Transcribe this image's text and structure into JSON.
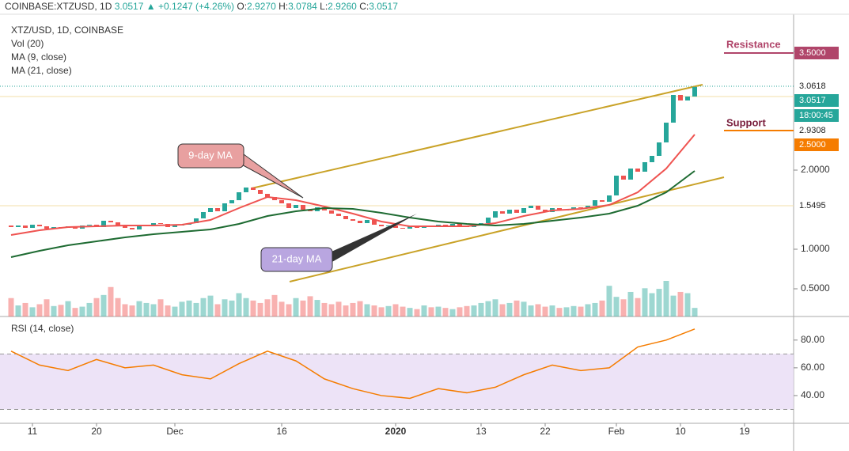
{
  "chart_data": {
    "type": "candlestick",
    "header": {
      "symbol": "COINBASE:XTZUSD, 1D",
      "last": "3.0517",
      "change": "▲ +0.1247 (+4.26%)",
      "ohlc": [
        {
          "label": "O:",
          "value": "2.9270"
        },
        {
          "label": "H:",
          "value": "3.0784"
        },
        {
          "label": "L:",
          "value": "2.9260"
        },
        {
          "label": "C:",
          "value": "3.0517"
        }
      ]
    },
    "title": "XTZ/USD, 1D, COINBASE",
    "indicator_labels": [
      "Vol (20)",
      "MA (9, close)",
      "MA (21, close)"
    ],
    "open": [
      1.3,
      1.28,
      1.3,
      1.27,
      1.31,
      1.29,
      1.26,
      1.28,
      1.27,
      1.29,
      1.26,
      1.3,
      1.31,
      1.28,
      1.36,
      1.34,
      1.3,
      1.27,
      1.25,
      1.29,
      1.31,
      1.33,
      1.32,
      1.28,
      1.3,
      1.31,
      1.33,
      1.39,
      1.47,
      1.52,
      1.48,
      1.58,
      1.62,
      1.72,
      1.78,
      1.75,
      1.7,
      1.66,
      1.62,
      1.58,
      1.52,
      1.56,
      1.5,
      1.48,
      1.53,
      1.49,
      1.45,
      1.42,
      1.38,
      1.36,
      1.33,
      1.37,
      1.31,
      1.29,
      1.3,
      1.27,
      1.26,
      1.29,
      1.27,
      1.3,
      1.28,
      1.31,
      1.29,
      1.32,
      1.3,
      1.28,
      1.31,
      1.33,
      1.4,
      1.48,
      1.45,
      1.5,
      1.46,
      1.52,
      1.55,
      1.5,
      1.47,
      1.52,
      1.49,
      1.5,
      1.53,
      1.52,
      1.55,
      1.62,
      1.6,
      1.68,
      1.93,
      1.88,
      2.02,
      1.98,
      2.1,
      2.18,
      2.35,
      2.6,
      2.95,
      2.88,
      2.93
    ],
    "close": [
      1.28,
      1.3,
      1.27,
      1.31,
      1.29,
      1.26,
      1.28,
      1.27,
      1.29,
      1.26,
      1.3,
      1.31,
      1.28,
      1.36,
      1.34,
      1.3,
      1.27,
      1.25,
      1.29,
      1.31,
      1.33,
      1.32,
      1.28,
      1.3,
      1.31,
      1.33,
      1.39,
      1.47,
      1.52,
      1.48,
      1.58,
      1.62,
      1.72,
      1.78,
      1.75,
      1.7,
      1.66,
      1.62,
      1.58,
      1.52,
      1.56,
      1.5,
      1.48,
      1.53,
      1.49,
      1.45,
      1.42,
      1.38,
      1.36,
      1.33,
      1.37,
      1.31,
      1.29,
      1.3,
      1.27,
      1.26,
      1.29,
      1.27,
      1.3,
      1.28,
      1.31,
      1.29,
      1.32,
      1.3,
      1.28,
      1.31,
      1.33,
      1.4,
      1.48,
      1.45,
      1.5,
      1.46,
      1.52,
      1.55,
      1.5,
      1.47,
      1.52,
      1.49,
      1.5,
      1.53,
      1.52,
      1.55,
      1.62,
      1.6,
      1.68,
      1.93,
      1.88,
      2.02,
      1.98,
      2.1,
      2.18,
      2.35,
      2.6,
      2.95,
      2.88,
      2.93,
      3.0517
    ],
    "volume": [
      30,
      18,
      22,
      15,
      20,
      28,
      17,
      19,
      25,
      14,
      16,
      22,
      30,
      35,
      48,
      30,
      20,
      18,
      25,
      22,
      20,
      28,
      18,
      16,
      24,
      26,
      22,
      30,
      34,
      20,
      28,
      26,
      38,
      30,
      26,
      22,
      28,
      35,
      24,
      20,
      30,
      26,
      33,
      27,
      22,
      20,
      24,
      18,
      22,
      25,
      20,
      18,
      15,
      17,
      20,
      16,
      14,
      12,
      18,
      15,
      16,
      14,
      12,
      15,
      17,
      18,
      22,
      25,
      28,
      20,
      22,
      26,
      24,
      18,
      20,
      16,
      18,
      14,
      15,
      17,
      16,
      20,
      22,
      26,
      50,
      32,
      28,
      40,
      30,
      46,
      38,
      45,
      58,
      34,
      40,
      38,
      14
    ],
    "up_color": "#26a69a",
    "down_color": "#ef5350",
    "ma_x": [
      0,
      4,
      8,
      12,
      16,
      20,
      24,
      28,
      32,
      36,
      40,
      44,
      48,
      52,
      56,
      60,
      64,
      68,
      72,
      76,
      80,
      84,
      88,
      92,
      96
    ],
    "series": [
      {
        "name": "MA (9, close)",
        "color": "#ef5350",
        "values": [
          1.18,
          1.24,
          1.28,
          1.29,
          1.3,
          1.3,
          1.31,
          1.37,
          1.52,
          1.66,
          1.62,
          1.54,
          1.45,
          1.35,
          1.29,
          1.29,
          1.29,
          1.33,
          1.42,
          1.49,
          1.51,
          1.56,
          1.72,
          2.02,
          2.45
        ]
      },
      {
        "name": "MA (21, close)",
        "color": "#1e6b32",
        "values": [
          0.9,
          0.98,
          1.05,
          1.1,
          1.15,
          1.19,
          1.22,
          1.25,
          1.32,
          1.42,
          1.48,
          1.52,
          1.51,
          1.46,
          1.4,
          1.35,
          1.32,
          1.3,
          1.32,
          1.36,
          1.4,
          1.45,
          1.55,
          1.72,
          1.99
        ]
      }
    ],
    "ylim": [
      0.15,
      3.95
    ],
    "yticks": [
      {
        "value": 3.5,
        "label": "3.5000"
      },
      {
        "value": 2,
        "label": "2.0000"
      },
      {
        "value": 1,
        "label": "1.0000"
      },
      {
        "value": 0.5,
        "label": "0.5000"
      }
    ],
    "price_tags": [
      {
        "value": 3.5,
        "label": "3.5000",
        "color": "#b0456a"
      },
      {
        "value": 3.0618,
        "label": "3.0618",
        "color": "#ffffff"
      },
      {
        "value": 3.0517,
        "label": "3.0517",
        "color": "#26a69a"
      },
      {
        "label": "18:00:45",
        "color": "#26a69a"
      },
      {
        "value": 2.9308,
        "label": "2.9308",
        "color": "#ffffff"
      },
      {
        "value": 2.5,
        "label": "2.5000",
        "color": "#f57c00"
      },
      {
        "value": 1.5495,
        "label": "1.5495",
        "color": "#ffffff"
      }
    ],
    "annotations": {
      "resistance": "Resistance",
      "support": "Support",
      "ma9": "9-day MA",
      "ma21": "21-day MA"
    },
    "xticks": [
      {
        "value": 3,
        "label": "11"
      },
      {
        "value": 12,
        "label": "20"
      },
      {
        "value": 23,
        "label": "Dec"
      },
      {
        "value": 38,
        "label": "16"
      },
      {
        "value": 54,
        "label": "2020"
      },
      {
        "value": 66,
        "label": "13"
      },
      {
        "value": 75,
        "label": "22"
      },
      {
        "value": 85,
        "label": "Feb"
      },
      {
        "value": 94,
        "label": "10"
      },
      {
        "value": 103,
        "label": "19"
      }
    ],
    "rsi": {
      "title": "RSI (14, close)",
      "color": "#f57c00",
      "values": [
        72,
        62,
        58,
        66,
        60,
        62,
        55,
        52,
        63,
        72,
        65,
        52,
        45,
        40,
        38,
        45,
        42,
        46,
        55,
        62,
        58,
        60,
        75,
        80,
        88
      ],
      "ylim": [
        20,
        97
      ],
      "yticks": [
        {
          "value": 80,
          "label": "80.00"
        },
        {
          "value": 60,
          "label": "60.00"
        },
        {
          "value": 40,
          "label": "40.00"
        }
      ],
      "band": [
        30,
        70
      ]
    }
  }
}
